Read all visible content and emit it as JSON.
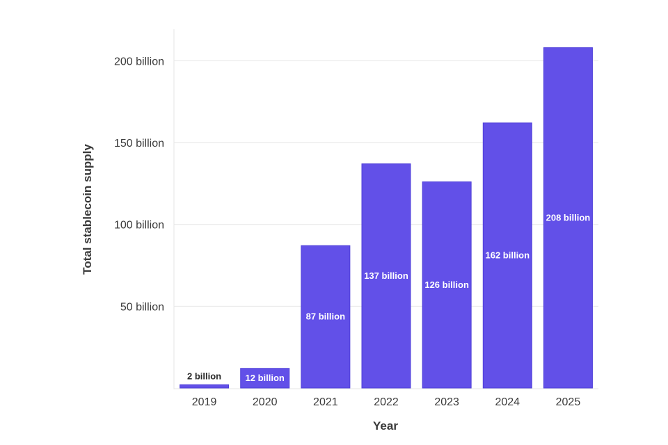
{
  "chart_data": {
    "type": "bar",
    "title": "",
    "xlabel": "Year",
    "ylabel": "Total stablecoin supply",
    "categories": [
      "2019",
      "2020",
      "2021",
      "2022",
      "2023",
      "2024",
      "2025"
    ],
    "values": [
      2,
      12,
      87,
      137,
      126,
      162,
      208
    ],
    "value_labels": [
      "2 billion",
      "12 billion",
      "87 billion",
      "137 billion",
      "126 billion",
      "162 billion",
      "208 billion"
    ],
    "ylim": [
      0,
      215
    ],
    "yticks": [
      50,
      100,
      150,
      200
    ],
    "ytick_labels": [
      "50 billion",
      "100 billion",
      "150 billion",
      "200 billion"
    ],
    "grid": true,
    "colors": {
      "bar": "#6250e8",
      "bar_border": "#4f3fd9",
      "label_inside": "#ffffff",
      "label_outside": "#2a2a2a",
      "grid": "#e6e6e6",
      "axis_text": "#3a3a3a"
    }
  }
}
